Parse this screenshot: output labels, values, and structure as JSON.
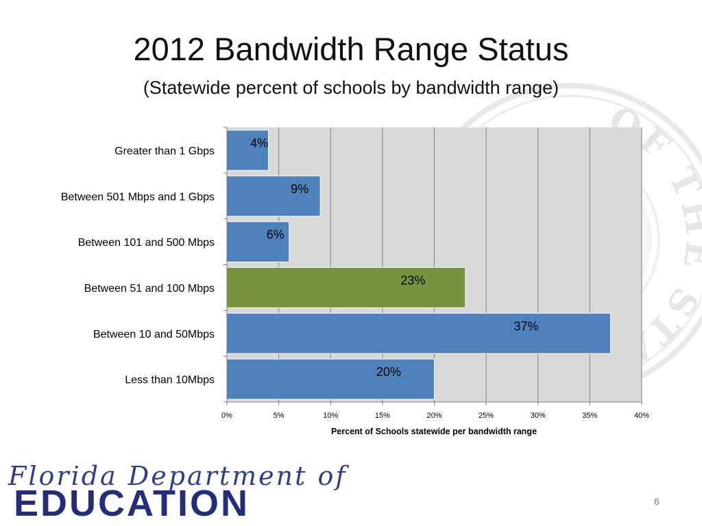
{
  "slide": {
    "title": "2012 Bandwidth Range Status",
    "subtitle": "(Statewide percent of schools by bandwidth range)",
    "page_number": "6"
  },
  "logo": {
    "script_text": "Florida Department of",
    "main_text": "EDUCATION",
    "color": "#242d7a"
  },
  "seal": {
    "text": "OF THE STATE OF · IN GOD WE TRUST"
  },
  "chart_data": {
    "type": "bar",
    "orientation": "horizontal",
    "categories": [
      "Greater than 1 Gbps",
      "Between 501 Mbps and 1 Gbps",
      "Between 101 and 500 Mbps",
      "Between 51 and 100 Mbps",
      "Between 10 and 50Mbps",
      "Less than 10Mbps"
    ],
    "values": [
      4,
      9,
      6,
      23,
      37,
      20
    ],
    "value_labels": [
      "4%",
      "9%",
      "6%",
      "23%",
      "37%",
      "20%"
    ],
    "bar_colors": [
      "#4f81bd",
      "#4f81bd",
      "#4f81bd",
      "#77933c",
      "#4f81bd",
      "#4f81bd"
    ],
    "xlim": [
      0,
      40
    ],
    "xticks": [
      0,
      5,
      10,
      15,
      20,
      25,
      30,
      35,
      40
    ],
    "xtick_labels": [
      "0%",
      "5%",
      "10%",
      "15%",
      "20%",
      "25%",
      "30%",
      "35%",
      "40%"
    ],
    "xlabel": "Percent of Schools statewide per bandwidth range",
    "ylabel": "",
    "grid": true,
    "legend": "none",
    "plot_background": "#d9d9d9"
  }
}
